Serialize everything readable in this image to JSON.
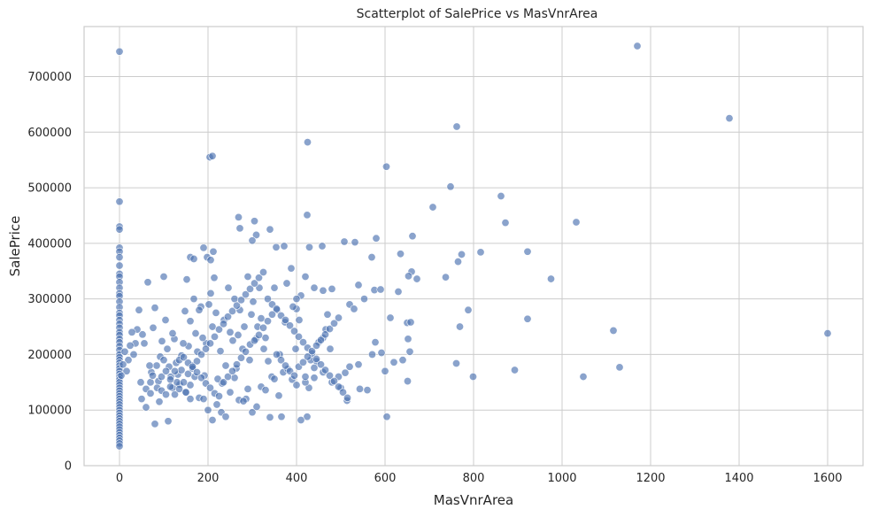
{
  "chart_data": {
    "type": "scatter",
    "title": "Scatterplot of SalePrice vs MasVnrArea",
    "xlabel": "MasVnrArea",
    "ylabel": "SalePrice",
    "xlim": [
      -80,
      1680
    ],
    "ylim": [
      0,
      790000
    ],
    "xticks": [
      0,
      200,
      400,
      600,
      800,
      1000,
      1200,
      1400,
      1600
    ],
    "yticks": [
      0,
      100000,
      200000,
      300000,
      400000,
      500000,
      600000,
      700000
    ],
    "grid": true,
    "color": "#4c72b0",
    "points": [
      [
        0,
        745000
      ],
      [
        0,
        475000
      ],
      [
        0,
        430000
      ],
      [
        0,
        425000
      ],
      [
        0,
        392000
      ],
      [
        0,
        385000
      ],
      [
        0,
        375000
      ],
      [
        0,
        360000
      ],
      [
        0,
        345000
      ],
      [
        0,
        340000
      ],
      [
        0,
        330000
      ],
      [
        0,
        320000
      ],
      [
        0,
        310000
      ],
      [
        0,
        305000
      ],
      [
        0,
        295000
      ],
      [
        0,
        285000
      ],
      [
        0,
        275000
      ],
      [
        0,
        270000
      ],
      [
        0,
        262000
      ],
      [
        0,
        255000
      ],
      [
        0,
        248000
      ],
      [
        0,
        240000
      ],
      [
        0,
        235000
      ],
      [
        0,
        228000
      ],
      [
        0,
        222000
      ],
      [
        0,
        215000
      ],
      [
        0,
        208000
      ],
      [
        0,
        200000
      ],
      [
        0,
        195000
      ],
      [
        0,
        190000
      ],
      [
        0,
        185000
      ],
      [
        0,
        180000
      ],
      [
        0,
        175000
      ],
      [
        0,
        170000
      ],
      [
        0,
        165000
      ],
      [
        0,
        160000
      ],
      [
        0,
        155000
      ],
      [
        0,
        150000
      ],
      [
        0,
        145000
      ],
      [
        0,
        140000
      ],
      [
        0,
        135000
      ],
      [
        0,
        130000
      ],
      [
        0,
        125000
      ],
      [
        0,
        120000
      ],
      [
        0,
        115000
      ],
      [
        0,
        110000
      ],
      [
        0,
        105000
      ],
      [
        0,
        100000
      ],
      [
        0,
        95000
      ],
      [
        0,
        90000
      ],
      [
        0,
        85000
      ],
      [
        0,
        80000
      ],
      [
        0,
        75000
      ],
      [
        0,
        70000
      ],
      [
        0,
        65000
      ],
      [
        0,
        60000
      ],
      [
        0,
        55000
      ],
      [
        0,
        50000
      ],
      [
        0,
        45000
      ],
      [
        0,
        40000
      ],
      [
        0,
        35000
      ],
      [
        204,
        555000
      ],
      [
        210,
        557000
      ],
      [
        425,
        582000
      ],
      [
        762,
        610000
      ],
      [
        1170,
        755000
      ],
      [
        1378,
        625000
      ],
      [
        1600,
        238000
      ],
      [
        603,
        538000
      ],
      [
        748,
        502000
      ],
      [
        862,
        485000
      ],
      [
        708,
        465000
      ],
      [
        1032,
        438000
      ],
      [
        872,
        437000
      ],
      [
        424,
        451000
      ],
      [
        269,
        447000
      ],
      [
        305,
        440000
      ],
      [
        340,
        425000
      ],
      [
        272,
        427000
      ],
      [
        309,
        415000
      ],
      [
        300,
        405000
      ],
      [
        580,
        409000
      ],
      [
        662,
        413000
      ],
      [
        508,
        403000
      ],
      [
        532,
        402000
      ],
      [
        458,
        395000
      ],
      [
        429,
        393000
      ],
      [
        372,
        395000
      ],
      [
        354,
        393000
      ],
      [
        190,
        392000
      ],
      [
        212,
        385000
      ],
      [
        198,
        375000
      ],
      [
        160,
        375000
      ],
      [
        168,
        372000
      ],
      [
        206,
        370000
      ],
      [
        570,
        375000
      ],
      [
        635,
        381000
      ],
      [
        773,
        380000
      ],
      [
        816,
        384000
      ],
      [
        922,
        385000
      ],
      [
        765,
        367000
      ],
      [
        737,
        339000
      ],
      [
        975,
        336000
      ],
      [
        576,
        316000
      ],
      [
        590,
        317000
      ],
      [
        630,
        313000
      ],
      [
        672,
        336000
      ],
      [
        660,
        349000
      ],
      [
        653,
        341000
      ],
      [
        553,
        300000
      ],
      [
        612,
        266000
      ],
      [
        650,
        257000
      ],
      [
        658,
        258000
      ],
      [
        922,
        264000
      ],
      [
        769,
        250000
      ],
      [
        788,
        280000
      ],
      [
        1116,
        243000
      ],
      [
        1130,
        177000
      ],
      [
        1048,
        160000
      ],
      [
        893,
        172000
      ],
      [
        799,
        160000
      ],
      [
        761,
        184000
      ],
      [
        656,
        205000
      ],
      [
        652,
        228000
      ],
      [
        651,
        152000
      ],
      [
        604,
        88000
      ],
      [
        571,
        200000
      ],
      [
        578,
        222000
      ],
      [
        592,
        203000
      ],
      [
        600,
        170000
      ],
      [
        620,
        186000
      ],
      [
        640,
        190000
      ],
      [
        560,
        136000
      ],
      [
        543,
        138000
      ],
      [
        510,
        167000
      ],
      [
        514,
        117000
      ],
      [
        495,
        160000
      ],
      [
        476,
        210000
      ],
      [
        470,
        272000
      ],
      [
        466,
        245000
      ],
      [
        460,
        230000
      ],
      [
        450,
        222000
      ],
      [
        445,
        188000
      ],
      [
        440,
        176000
      ],
      [
        432,
        190000
      ],
      [
        428,
        140000
      ],
      [
        424,
        88000
      ],
      [
        420,
        150000
      ],
      [
        410,
        82000
      ],
      [
        406,
        262000
      ],
      [
        400,
        282000
      ],
      [
        398,
        210000
      ],
      [
        392,
        286000
      ],
      [
        388,
        355000
      ],
      [
        378,
        328000
      ],
      [
        374,
        258000
      ],
      [
        366,
        88000
      ],
      [
        362,
        200000
      ],
      [
        356,
        280000
      ],
      [
        350,
        320000
      ],
      [
        344,
        160000
      ],
      [
        336,
        188000
      ],
      [
        330,
        230000
      ],
      [
        326,
        210000
      ],
      [
        320,
        265000
      ],
      [
        316,
        320000
      ],
      [
        312,
        250000
      ],
      [
        308,
        228000
      ],
      [
        302,
        295000
      ],
      [
        298,
        272000
      ],
      [
        294,
        190000
      ],
      [
        290,
        340000
      ],
      [
        286,
        120000
      ],
      [
        282,
        250000
      ],
      [
        278,
        210000
      ],
      [
        272,
        280000
      ],
      [
        268,
        235000
      ],
      [
        264,
        175000
      ],
      [
        260,
        300000
      ],
      [
        256,
        225000
      ],
      [
        250,
        240000
      ],
      [
        246,
        320000
      ],
      [
        240,
        180000
      ],
      [
        236,
        262000
      ],
      [
        232,
        148000
      ],
      [
        228,
        206000
      ],
      [
        222,
        156000
      ],
      [
        218,
        275000
      ],
      [
        214,
        338000
      ],
      [
        210,
        250000
      ],
      [
        206,
        310000
      ],
      [
        202,
        290000
      ],
      [
        196,
        220000
      ],
      [
        192,
        162000
      ],
      [
        188,
        230000
      ],
      [
        184,
        286000
      ],
      [
        180,
        280000
      ],
      [
        176,
        205000
      ],
      [
        172,
        238000
      ],
      [
        168,
        300000
      ],
      [
        164,
        180000
      ],
      [
        160,
        260000
      ],
      [
        156,
        215000
      ],
      [
        152,
        335000
      ],
      [
        148,
        278000
      ],
      [
        144,
        220000
      ],
      [
        140,
        198000
      ],
      [
        136,
        146000
      ],
      [
        132,
        164000
      ],
      [
        128,
        185000
      ],
      [
        124,
        228000
      ],
      [
        120,
        238000
      ],
      [
        116,
        160000
      ],
      [
        112,
        178000
      ],
      [
        108,
        210000
      ],
      [
        104,
        262000
      ],
      [
        100,
        340000
      ],
      [
        96,
        224000
      ],
      [
        92,
        196000
      ],
      [
        88,
        152000
      ],
      [
        84,
        180000
      ],
      [
        80,
        284000
      ],
      [
        76,
        248000
      ],
      [
        72,
        168000
      ],
      [
        68,
        180000
      ],
      [
        64,
        330000
      ],
      [
        60,
        138000
      ],
      [
        56,
        220000
      ],
      [
        52,
        236000
      ],
      [
        48,
        150000
      ],
      [
        44,
        280000
      ],
      [
        40,
        245000
      ],
      [
        36,
        220000
      ],
      [
        32,
        200000
      ],
      [
        28,
        240000
      ],
      [
        24,
        216000
      ],
      [
        20,
        190000
      ],
      [
        16,
        170000
      ],
      [
        12,
        205000
      ],
      [
        8,
        182000
      ],
      [
        4,
        162000
      ],
      [
        50,
        120000
      ],
      [
        60,
        105000
      ],
      [
        70,
        130000
      ],
      [
        80,
        75000
      ],
      [
        90,
        115000
      ],
      [
        100,
        190000
      ],
      [
        110,
        80000
      ],
      [
        120,
        140000
      ],
      [
        130,
        150000
      ],
      [
        140,
        172000
      ],
      [
        150,
        132000
      ],
      [
        160,
        145000
      ],
      [
        170,
        160000
      ],
      [
        180,
        122000
      ],
      [
        190,
        120000
      ],
      [
        200,
        100000
      ],
      [
        210,
        82000
      ],
      [
        220,
        110000
      ],
      [
        230,
        96000
      ],
      [
        240,
        88000
      ],
      [
        250,
        132000
      ],
      [
        260,
        158000
      ],
      [
        270,
        118000
      ],
      [
        280,
        116000
      ],
      [
        290,
        138000
      ],
      [
        300,
        96000
      ],
      [
        310,
        106000
      ],
      [
        320,
        142000
      ],
      [
        330,
        136000
      ],
      [
        340,
        87000
      ],
      [
        350,
        156000
      ],
      [
        360,
        126000
      ],
      [
        370,
        168000
      ],
      [
        380,
        174000
      ],
      [
        390,
        155000
      ],
      [
        400,
        145000
      ],
      [
        420,
        160000
      ],
      [
        440,
        158000
      ],
      [
        460,
        168000
      ],
      [
        480,
        150000
      ],
      [
        500,
        140000
      ],
      [
        520,
        178000
      ],
      [
        540,
        182000
      ],
      [
        520,
        290000
      ],
      [
        530,
        282000
      ],
      [
        540,
        325000
      ],
      [
        480,
        318000
      ],
      [
        460,
        315000
      ],
      [
        440,
        320000
      ],
      [
        420,
        340000
      ],
      [
        410,
        306000
      ],
      [
        400,
        300000
      ],
      [
        150,
        132000
      ],
      [
        160,
        120000
      ],
      [
        95,
        160000
      ],
      [
        105,
        170000
      ],
      [
        115,
        142000
      ],
      [
        125,
        128000
      ],
      [
        135,
        138000
      ],
      [
        145,
        150000
      ],
      [
        155,
        165000
      ],
      [
        165,
        175000
      ],
      [
        175,
        188000
      ],
      [
        185,
        200000
      ],
      [
        195,
        210000
      ],
      [
        205,
        220000
      ],
      [
        215,
        232000
      ],
      [
        225,
        245000
      ],
      [
        235,
        255000
      ],
      [
        245,
        268000
      ],
      [
        255,
        278000
      ],
      [
        265,
        288000
      ],
      [
        275,
        298000
      ],
      [
        285,
        308000
      ],
      [
        295,
        318000
      ],
      [
        305,
        328000
      ],
      [
        315,
        338000
      ],
      [
        325,
        348000
      ],
      [
        335,
        300000
      ],
      [
        345,
        290000
      ],
      [
        355,
        282000
      ],
      [
        365,
        270000
      ],
      [
        375,
        262000
      ],
      [
        385,
        252000
      ],
      [
        395,
        242000
      ],
      [
        405,
        232000
      ],
      [
        415,
        222000
      ],
      [
        425,
        212000
      ],
      [
        435,
        202000
      ],
      [
        445,
        192000
      ],
      [
        455,
        182000
      ],
      [
        465,
        172000
      ],
      [
        475,
        162000
      ],
      [
        485,
        152000
      ],
      [
        495,
        142000
      ],
      [
        505,
        132000
      ],
      [
        515,
        122000
      ],
      [
        70,
        150000
      ],
      [
        75,
        162000
      ],
      [
        85,
        140000
      ],
      [
        95,
        135000
      ],
      [
        105,
        128000
      ],
      [
        115,
        155000
      ],
      [
        125,
        170000
      ],
      [
        135,
        190000
      ],
      [
        145,
        195000
      ],
      [
        155,
        185000
      ],
      [
        165,
        178000
      ],
      [
        175,
        168000
      ],
      [
        185,
        158000
      ],
      [
        195,
        148000
      ],
      [
        205,
        140000
      ],
      [
        215,
        130000
      ],
      [
        225,
        125000
      ],
      [
        235,
        150000
      ],
      [
        245,
        160000
      ],
      [
        255,
        170000
      ],
      [
        265,
        182000
      ],
      [
        275,
        194000
      ],
      [
        285,
        205000
      ],
      [
        295,
        218000
      ],
      [
        305,
        225000
      ],
      [
        315,
        235000
      ],
      [
        325,
        248000
      ],
      [
        335,
        260000
      ],
      [
        345,
        272000
      ],
      [
        355,
        200000
      ],
      [
        365,
        190000
      ],
      [
        375,
        180000
      ],
      [
        385,
        170000
      ],
      [
        395,
        162000
      ],
      [
        405,
        178000
      ],
      [
        415,
        186000
      ],
      [
        425,
        196000
      ],
      [
        435,
        206000
      ],
      [
        445,
        216000
      ],
      [
        455,
        226000
      ],
      [
        465,
        236000
      ],
      [
        475,
        246000
      ],
      [
        485,
        256000
      ],
      [
        495,
        266000
      ]
    ]
  }
}
